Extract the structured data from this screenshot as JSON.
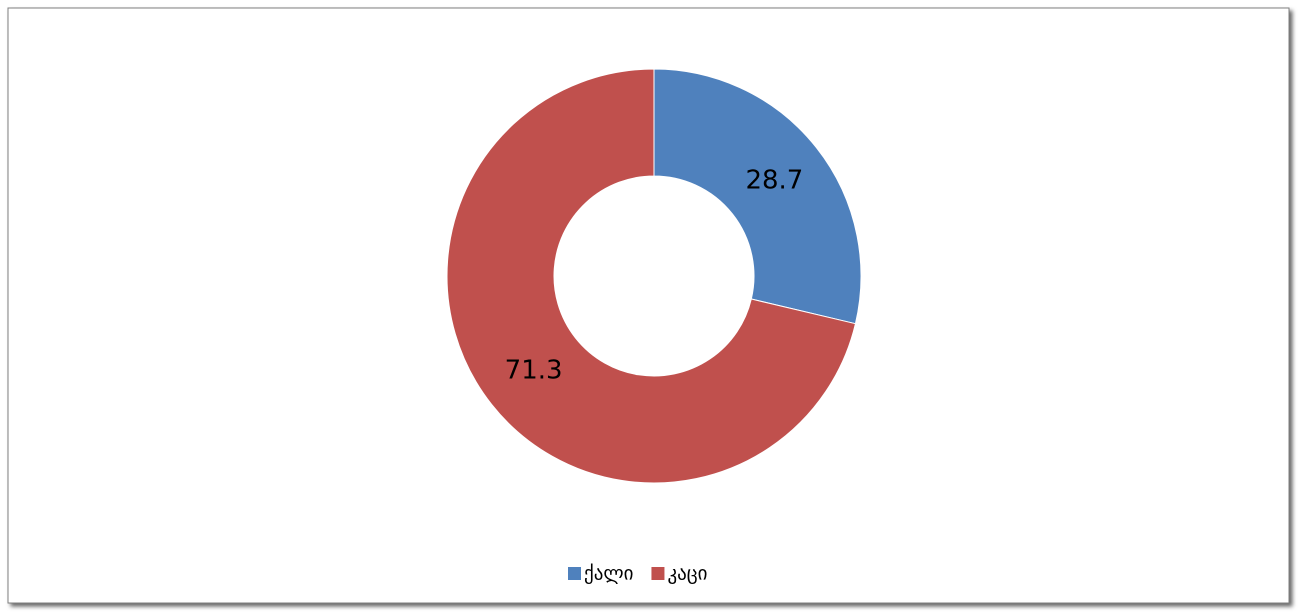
{
  "chart_data": {
    "type": "donut",
    "categories": [
      "ქალი",
      "კაცი"
    ],
    "values": [
      28.7,
      71.3
    ],
    "colors": [
      "#4f81bd",
      "#c0504d"
    ],
    "legend": "bottom"
  }
}
